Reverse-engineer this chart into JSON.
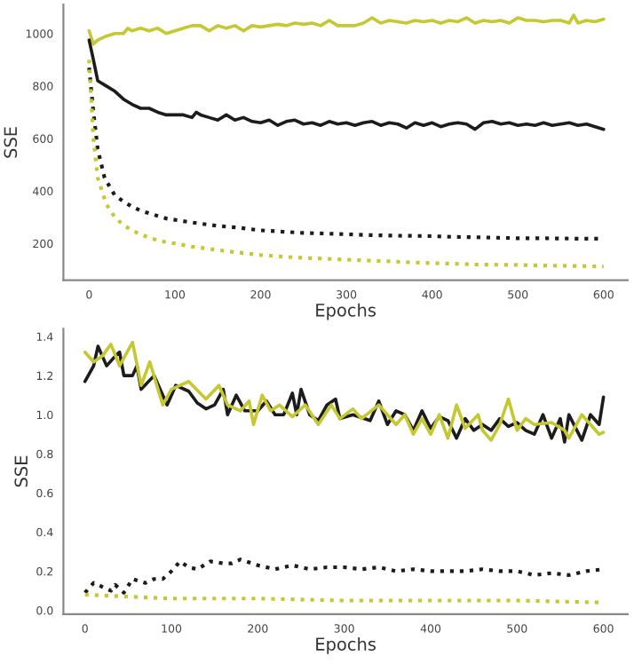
{
  "chart_data": [
    {
      "type": "line",
      "xlabel": "Epochs",
      "ylabel": "SSE",
      "xlim": [
        -30,
        628
      ],
      "ylim": [
        60,
        1110
      ],
      "xticks": [
        0,
        100,
        200,
        300,
        400,
        500,
        600
      ],
      "yticks": [
        200,
        400,
        600,
        800,
        1000
      ],
      "series": [
        {
          "color": "#c6c832",
          "line_style": "solid",
          "x": [
            0,
            5,
            10,
            20,
            30,
            40,
            45,
            50,
            60,
            70,
            80,
            90,
            100,
            110,
            120,
            130,
            140,
            150,
            160,
            170,
            180,
            190,
            200,
            210,
            220,
            230,
            240,
            250,
            260,
            270,
            280,
            290,
            300,
            310,
            320,
            330,
            340,
            350,
            360,
            370,
            380,
            390,
            400,
            410,
            420,
            430,
            440,
            450,
            460,
            470,
            480,
            490,
            500,
            510,
            520,
            530,
            540,
            550,
            560,
            565,
            570,
            580,
            590,
            600
          ],
          "values": [
            1010,
            960,
            975,
            990,
            1000,
            1000,
            1020,
            1010,
            1020,
            1010,
            1020,
            1000,
            1010,
            1020,
            1030,
            1030,
            1010,
            1030,
            1020,
            1030,
            1010,
            1030,
            1025,
            1030,
            1035,
            1030,
            1040,
            1035,
            1040,
            1030,
            1050,
            1030,
            1030,
            1030,
            1040,
            1060,
            1040,
            1050,
            1045,
            1040,
            1050,
            1045,
            1050,
            1040,
            1050,
            1045,
            1060,
            1040,
            1050,
            1045,
            1050,
            1040,
            1060,
            1050,
            1050,
            1045,
            1050,
            1050,
            1040,
            1070,
            1040,
            1050,
            1045,
            1055
          ]
        },
        {
          "color": "#1c1c1c",
          "line_style": "solid",
          "x": [
            0,
            5,
            10,
            20,
            30,
            40,
            50,
            60,
            70,
            80,
            90,
            100,
            110,
            120,
            125,
            130,
            140,
            150,
            160,
            170,
            180,
            190,
            200,
            210,
            220,
            230,
            240,
            250,
            260,
            270,
            280,
            290,
            300,
            310,
            320,
            330,
            340,
            350,
            360,
            370,
            380,
            390,
            400,
            410,
            420,
            430,
            440,
            450,
            460,
            470,
            480,
            490,
            500,
            510,
            520,
            530,
            540,
            550,
            560,
            570,
            580,
            590,
            600
          ],
          "values": [
            975,
            900,
            820,
            800,
            780,
            750,
            730,
            715,
            715,
            700,
            690,
            690,
            690,
            680,
            700,
            690,
            680,
            670,
            690,
            670,
            680,
            665,
            660,
            670,
            650,
            665,
            670,
            655,
            660,
            650,
            665,
            655,
            660,
            650,
            660,
            665,
            650,
            660,
            655,
            640,
            660,
            650,
            660,
            645,
            655,
            660,
            655,
            635,
            660,
            665,
            655,
            660,
            650,
            655,
            650,
            660,
            650,
            655,
            660,
            650,
            655,
            645,
            635
          ]
        },
        {
          "color": "#1c1c1c",
          "line_style": "dotted",
          "x": [
            0,
            5,
            10,
            18,
            30,
            40,
            50,
            60,
            70,
            80,
            90,
            100,
            120,
            150,
            175,
            200,
            225,
            250,
            275,
            300,
            325,
            350,
            375,
            400,
            425,
            450,
            475,
            500,
            525,
            550,
            575,
            600
          ],
          "values": [
            870,
            700,
            560,
            450,
            383,
            360,
            340,
            325,
            315,
            305,
            295,
            290,
            280,
            267,
            260,
            250,
            245,
            240,
            238,
            235,
            232,
            230,
            229,
            228,
            225,
            224,
            222,
            220,
            220,
            219,
            218,
            218
          ]
        },
        {
          "color": "#c6c832",
          "line_style": "dotted",
          "x": [
            0,
            5,
            10,
            20,
            30,
            40,
            50,
            60,
            70,
            80,
            90,
            100,
            120,
            150,
            175,
            200,
            225,
            250,
            275,
            300,
            325,
            350,
            375,
            400,
            425,
            450,
            475,
            500,
            525,
            550,
            575,
            600
          ],
          "values": [
            900,
            600,
            450,
            350,
            300,
            270,
            250,
            235,
            222,
            212,
            205,
            200,
            188,
            175,
            165,
            156,
            150,
            145,
            142,
            138,
            135,
            132,
            128,
            125,
            123,
            120,
            119,
            118,
            116,
            115,
            114,
            112
          ]
        }
      ]
    },
    {
      "type": "line",
      "xlabel": "Epochs",
      "ylabel": "SSE",
      "xlim": [
        -25,
        628
      ],
      "ylim": [
        -0.02,
        1.44
      ],
      "xticks": [
        0,
        100,
        200,
        300,
        400,
        500,
        600
      ],
      "yticks": [
        {
          "value": 0,
          "label": "0.0"
        },
        0.2,
        0.4,
        0.6,
        0.8,
        {
          "value": 1,
          "label": "1.0"
        },
        1.2,
        1.4
      ],
      "series": [
        {
          "color": "#1c1c1c",
          "line_style": "solid",
          "x": [
            0,
            10,
            15,
            25,
            35,
            40,
            45,
            55,
            60,
            65,
            80,
            95,
            105,
            120,
            130,
            140,
            150,
            160,
            165,
            175,
            185,
            200,
            210,
            220,
            230,
            240,
            245,
            250,
            260,
            270,
            280,
            290,
            295,
            310,
            330,
            340,
            350,
            360,
            370,
            380,
            390,
            400,
            410,
            420,
            430,
            440,
            450,
            460,
            470,
            480,
            490,
            500,
            510,
            520,
            530,
            540,
            550,
            555,
            560,
            575,
            585,
            595,
            600
          ],
          "values": [
            1.17,
            1.25,
            1.35,
            1.25,
            1.3,
            1.32,
            1.2,
            1.2,
            1.25,
            1.13,
            1.2,
            1.05,
            1.15,
            1.12,
            1.06,
            1.03,
            1.05,
            1.13,
            1.0,
            1.1,
            1.02,
            1.02,
            1.07,
            1.0,
            1.0,
            1.11,
            1.0,
            1.13,
            1.0,
            0.97,
            1.05,
            1.08,
            0.98,
            1.0,
            0.97,
            1.07,
            0.95,
            1.02,
            1.0,
            0.92,
            1.02,
            0.93,
            0.99,
            0.97,
            0.88,
            0.98,
            0.92,
            0.95,
            0.92,
            0.98,
            0.94,
            0.96,
            0.92,
            0.9,
            1.0,
            0.88,
            0.98,
            0.86,
            1.0,
            0.87,
            1.0,
            0.95,
            1.09
          ]
        },
        {
          "color": "#c6c832",
          "line_style": "solid",
          "x": [
            0,
            10,
            20,
            30,
            40,
            55,
            65,
            75,
            90,
            100,
            110,
            120,
            140,
            155,
            165,
            180,
            190,
            195,
            205,
            215,
            225,
            240,
            255,
            270,
            285,
            295,
            310,
            320,
            340,
            360,
            370,
            380,
            390,
            400,
            410,
            420,
            430,
            440,
            455,
            460,
            470,
            480,
            490,
            500,
            510,
            520,
            540,
            555,
            560,
            575,
            585,
            595,
            600
          ],
          "values": [
            1.32,
            1.27,
            1.3,
            1.36,
            1.25,
            1.37,
            1.15,
            1.27,
            1.05,
            1.13,
            1.15,
            1.17,
            1.08,
            1.15,
            1.05,
            1.02,
            1.07,
            0.95,
            1.1,
            1.02,
            1.05,
            0.99,
            1.05,
            0.95,
            1.05,
            0.98,
            1.03,
            0.98,
            1.05,
            0.95,
            1.0,
            0.9,
            0.98,
            0.9,
            1.0,
            0.88,
            1.05,
            0.93,
            1.0,
            0.92,
            0.87,
            0.95,
            1.08,
            0.92,
            0.98,
            0.95,
            0.96,
            0.92,
            0.88,
            1.0,
            0.95,
            0.9,
            0.91
          ]
        },
        {
          "color": "#1c1c1c",
          "line_style": "dotted",
          "x": [
            0,
            10,
            20,
            30,
            35,
            45,
            55,
            70,
            80,
            90,
            100,
            110,
            120,
            130,
            145,
            160,
            170,
            180,
            200,
            220,
            240,
            260,
            280,
            300,
            320,
            340,
            360,
            380,
            400,
            420,
            440,
            460,
            480,
            500,
            520,
            540,
            560,
            580,
            600
          ],
          "values": [
            0.09,
            0.14,
            0.12,
            0.1,
            0.13,
            0.09,
            0.16,
            0.14,
            0.16,
            0.16,
            0.2,
            0.25,
            0.22,
            0.21,
            0.25,
            0.24,
            0.24,
            0.26,
            0.23,
            0.21,
            0.23,
            0.21,
            0.22,
            0.22,
            0.21,
            0.22,
            0.2,
            0.21,
            0.2,
            0.2,
            0.2,
            0.21,
            0.2,
            0.2,
            0.18,
            0.19,
            0.18,
            0.2,
            0.21
          ]
        },
        {
          "color": "#c6c832",
          "line_style": "dotted",
          "x": [
            0,
            50,
            100,
            200,
            300,
            400,
            500,
            600
          ],
          "values": [
            0.08,
            0.07,
            0.06,
            0.06,
            0.05,
            0.05,
            0.05,
            0.04
          ]
        }
      ]
    }
  ]
}
